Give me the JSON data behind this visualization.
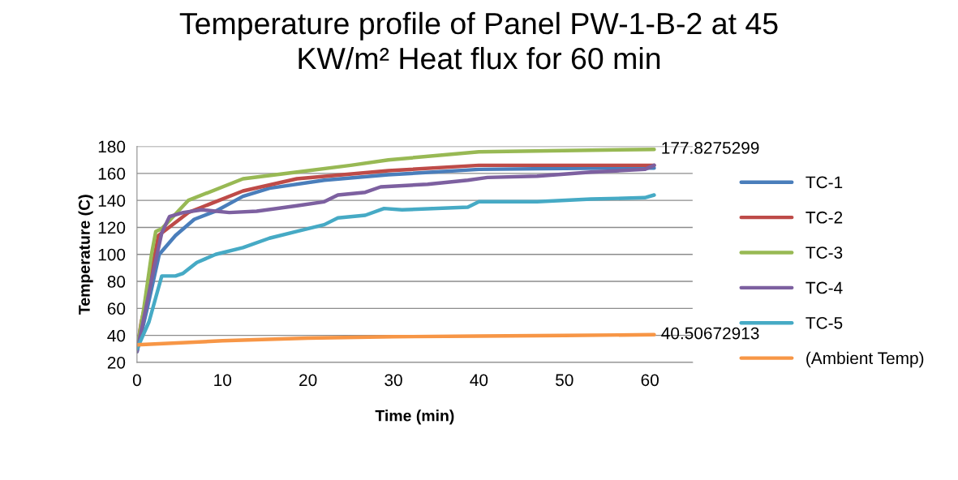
{
  "chart_data": {
    "type": "line",
    "title": "Temperature profile of Panel PW-1-B-2 at 45\nKW/m² Heat flux for 60 min",
    "xlabel": "Time (min)",
    "ylabel": "Temperature (C)",
    "xlim": [
      0,
      65
    ],
    "xticks": [
      0,
      10,
      20,
      30,
      40,
      50,
      60
    ],
    "ylim": [
      20,
      180
    ],
    "yticks": [
      20,
      40,
      60,
      80,
      100,
      120,
      140,
      160,
      180
    ],
    "grid": "y",
    "legend": "right",
    "marker": "none",
    "line_style": "solid",
    "series": [
      {
        "name": "TC-1",
        "color": "#4a7ebb",
        "x": [
          0,
          1.2,
          2.6,
          4.5,
          6.7,
          9.2,
          12.4,
          15.5,
          21.9,
          29.4,
          40,
          55,
          60.5
        ],
        "values": [
          28,
          60,
          100,
          114,
          126,
          132,
          143,
          149,
          155,
          159,
          163,
          164,
          164
        ]
      },
      {
        "name": "TC-2",
        "color": "#be4b48",
        "x": [
          0,
          0.5,
          1,
          1.5,
          2.5,
          6,
          12.4,
          18.7,
          29.4,
          40,
          60.5
        ],
        "values": [
          30,
          50,
          63,
          80,
          114,
          131,
          147,
          156,
          162,
          166,
          166
        ]
      },
      {
        "name": "TC-3",
        "color": "#98b954",
        "x": [
          0,
          0.8,
          1.7,
          2.2,
          2.9,
          6,
          12.4,
          18.7,
          25,
          29.4,
          40,
          60.5
        ],
        "values": [
          30,
          60,
          100,
          117,
          119,
          140,
          156,
          161,
          166,
          170,
          176,
          177.8275299
        ]
      },
      {
        "name": "TC-4",
        "color": "#7d60a0",
        "x": [
          0,
          2,
          2.9,
          3.8,
          5.4,
          7.6,
          10.8,
          14,
          18.7,
          21.9,
          23.5,
          26.7,
          28.5,
          34,
          38.7,
          41,
          46.8,
          53.1,
          59.4,
          60.5
        ],
        "values": [
          28,
          90,
          116,
          128,
          131,
          133,
          131,
          132,
          136,
          139,
          144,
          146,
          150,
          152,
          155,
          157,
          158,
          161,
          163,
          166
        ]
      },
      {
        "name": "TC-5",
        "color": "#46aac5",
        "x": [
          0,
          1.4,
          2.9,
          4.5,
          5.4,
          7,
          9.2,
          12.4,
          15.5,
          18.7,
          21.9,
          23.5,
          26.7,
          28.9,
          31,
          38.7,
          40,
          46.8,
          53.1,
          59.4,
          60.5
        ],
        "values": [
          30,
          50,
          84,
          84,
          86,
          94,
          100,
          105,
          112,
          117,
          122,
          127,
          129,
          134,
          133,
          135,
          139,
          139,
          141,
          142,
          144
        ]
      },
      {
        "name": "(Ambient Temp)",
        "color": "#f79646",
        "x": [
          0,
          10,
          20,
          30,
          40,
          50,
          60.5
        ],
        "values": [
          33,
          36,
          38,
          39,
          39.5,
          40,
          40.50672913
        ]
      }
    ],
    "annotations": [
      {
        "text": "177.8275299",
        "x": 60.5,
        "y": 177.8275299
      },
      {
        "text": "40.50672913",
        "x": 60.5,
        "y": 40.50672913
      }
    ]
  }
}
